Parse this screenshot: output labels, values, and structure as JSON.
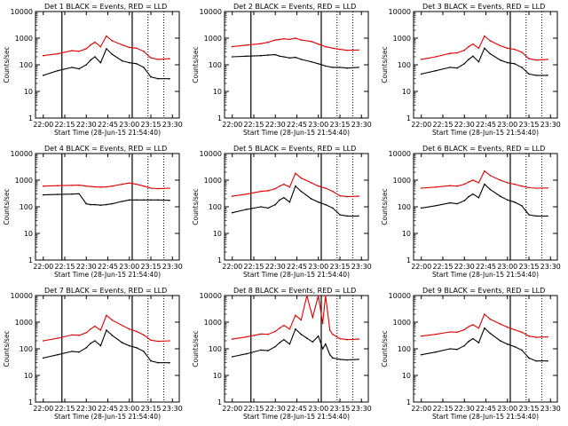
{
  "figure": {
    "shared_x_tick_labels": [
      "22:00",
      "22:15",
      "22:30",
      "22:45",
      "23:00",
      "23:15",
      "23:30"
    ],
    "shared_y_tick_labels": [
      "1",
      "10",
      "100",
      "1000",
      "10000"
    ],
    "ylabel": "Counts/sec",
    "xlabel": "Start Time (28-Jun-15 21:54:40)",
    "colors": {
      "events": "#000000",
      "lld": "#e00000",
      "background": "#ffffff",
      "axes": "#000000"
    }
  },
  "chart_data": [
    {
      "type": "line",
      "title": "Det  1",
      "legend_text": {
        "prefix": "BLACK = Events, RED",
        "suffix": "LLD",
        "equals": "="
      },
      "xlabel": "Start Time (28-Jun-15 21:54:40)",
      "ylabel": "Counts/sec",
      "x_unit": "minutes",
      "xlim": [
        21.91,
        23.58
      ],
      "ylim": [
        1,
        10000
      ],
      "yscale": "log",
      "x": [
        "22:00",
        "22:10",
        "22:20",
        "22:25",
        "22:30",
        "22:33",
        "22:36",
        "22:40",
        "22:44",
        "22:48",
        "22:55",
        "23:00",
        "23:05",
        "23:10",
        "23:15",
        "23:20",
        "23:28"
      ],
      "series": [
        {
          "name": "LLD",
          "color": "#e00000",
          "values": [
            220,
            260,
            340,
            320,
            400,
            560,
            700,
            480,
            1200,
            800,
            560,
            450,
            420,
            320,
            180,
            160,
            170
          ]
        },
        {
          "name": "Events",
          "color": "#000000",
          "values": [
            40,
            60,
            80,
            70,
            100,
            150,
            200,
            120,
            400,
            250,
            140,
            120,
            110,
            80,
            35,
            30,
            30
          ]
        }
      ],
      "vertical_lines": {
        "solid": [
          "22:13",
          "23:02"
        ],
        "dotted": [
          "23:13",
          "23:24"
        ]
      }
    },
    {
      "type": "line",
      "title": "Det  2",
      "legend_text": {
        "prefix": "BLACK = Events, RED",
        "suffix": "LLD",
        "equals": "="
      },
      "xlabel": "Start Time (28-Jun-15 21:54:40)",
      "ylabel": "Counts/sec",
      "x_unit": "minutes",
      "xlim": [
        21.91,
        23.58
      ],
      "ylim": [
        1,
        10000
      ],
      "yscale": "log",
      "x": [
        "22:00",
        "22:10",
        "22:20",
        "22:25",
        "22:30",
        "22:33",
        "22:36",
        "22:40",
        "22:44",
        "22:48",
        "22:55",
        "23:00",
        "23:05",
        "23:10",
        "23:15",
        "23:20",
        "23:28"
      ],
      "series": [
        {
          "name": "LLD",
          "color": "#e00000",
          "values": [
            480,
            550,
            620,
            700,
            850,
            900,
            950,
            900,
            1000,
            850,
            750,
            600,
            480,
            420,
            380,
            350,
            360
          ]
        },
        {
          "name": "Events",
          "color": "#000000",
          "values": [
            200,
            210,
            220,
            230,
            240,
            210,
            200,
            180,
            190,
            160,
            130,
            110,
            90,
            80,
            80,
            75,
            80
          ]
        }
      ],
      "vertical_lines": {
        "solid": [
          "22:13",
          "23:02"
        ],
        "dotted": [
          "23:13",
          "23:24"
        ]
      }
    },
    {
      "type": "line",
      "title": "Det  3",
      "legend_text": {
        "prefix": "BLACK = Events, RED",
        "suffix": "LLD",
        "equals": "="
      },
      "xlabel": "Start Time (28-Jun-15 21:54:40)",
      "ylabel": "Counts/sec",
      "x_unit": "minutes",
      "xlim": [
        21.91,
        23.58
      ],
      "ylim": [
        1,
        10000
      ],
      "yscale": "log",
      "x": [
        "22:00",
        "22:10",
        "22:20",
        "22:25",
        "22:30",
        "22:33",
        "22:36",
        "22:40",
        "22:44",
        "22:48",
        "22:55",
        "23:00",
        "23:05",
        "23:10",
        "23:15",
        "23:20",
        "23:28"
      ],
      "series": [
        {
          "name": "LLD",
          "color": "#e00000",
          "values": [
            160,
            200,
            270,
            280,
            350,
            480,
            600,
            420,
            1200,
            800,
            520,
            420,
            380,
            300,
            170,
            150,
            160
          ]
        },
        {
          "name": "Events",
          "color": "#000000",
          "values": [
            45,
            60,
            80,
            75,
            110,
            160,
            210,
            130,
            420,
            260,
            150,
            120,
            110,
            80,
            45,
            40,
            40
          ]
        }
      ],
      "vertical_lines": {
        "solid": [
          "23:02"
        ],
        "dotted": [
          "23:13",
          "23:24"
        ]
      }
    },
    {
      "type": "line",
      "title": "Det  4",
      "legend_text": {
        "prefix": "BLACK = Events, RED",
        "suffix": "LLD",
        "equals": "="
      },
      "xlabel": "Start Time (28-Jun-15 21:54:40)",
      "ylabel": "Counts/sec",
      "x_unit": "minutes",
      "xlim": [
        21.91,
        23.58
      ],
      "ylim": [
        1,
        10000
      ],
      "yscale": "log",
      "x": [
        "22:00",
        "22:10",
        "22:20",
        "22:25",
        "22:30",
        "22:33",
        "22:36",
        "22:40",
        "22:44",
        "22:48",
        "22:55",
        "23:00",
        "23:05",
        "23:10",
        "23:15",
        "23:20",
        "23:28"
      ],
      "series": [
        {
          "name": "LLD",
          "color": "#e00000",
          "values": [
            600,
            620,
            640,
            650,
            600,
            580,
            560,
            550,
            560,
            600,
            700,
            780,
            700,
            600,
            500,
            480,
            500
          ]
        },
        {
          "name": "Events",
          "color": "#000000",
          "values": [
            280,
            290,
            300,
            310,
            130,
            120,
            120,
            115,
            120,
            130,
            160,
            180,
            180,
            180,
            180,
            180,
            175
          ]
        }
      ],
      "vertical_lines": {
        "solid": [
          "22:13",
          "23:02"
        ],
        "dotted": [
          "23:13",
          "23:24"
        ]
      }
    },
    {
      "type": "line",
      "title": "Det  5",
      "legend_text": {
        "prefix": "BLACK = Events, RED",
        "suffix": "LLD",
        "equals": "="
      },
      "xlabel": "Start Time (28-Jun-15 21:54:40)",
      "ylabel": "Counts/sec",
      "x_unit": "minutes",
      "xlim": [
        21.91,
        23.58
      ],
      "ylim": [
        1,
        10000
      ],
      "yscale": "log",
      "x": [
        "22:00",
        "22:10",
        "22:20",
        "22:25",
        "22:30",
        "22:33",
        "22:36",
        "22:40",
        "22:44",
        "22:48",
        "22:55",
        "23:00",
        "23:05",
        "23:10",
        "23:15",
        "23:20",
        "23:28"
      ],
      "series": [
        {
          "name": "LLD",
          "color": "#e00000",
          "values": [
            250,
            300,
            380,
            400,
            480,
            600,
            700,
            550,
            1800,
            1200,
            800,
            600,
            500,
            380,
            260,
            240,
            250
          ]
        },
        {
          "name": "Events",
          "color": "#000000",
          "values": [
            60,
            80,
            100,
            90,
            120,
            180,
            220,
            150,
            600,
            380,
            200,
            150,
            120,
            90,
            50,
            45,
            45
          ]
        }
      ],
      "vertical_lines": {
        "solid": [
          "22:13",
          "23:02"
        ],
        "dotted": [
          "23:13",
          "23:24"
        ]
      }
    },
    {
      "type": "line",
      "title": "Det  6",
      "legend_text": {
        "prefix": "BLACK = Events, RED",
        "suffix": "LLD",
        "equals": "="
      },
      "xlabel": "Start Time (28-Jun-15 21:54:40)",
      "ylabel": "Counts/sec",
      "x_unit": "minutes",
      "xlim": [
        21.91,
        23.58
      ],
      "ylim": [
        1,
        10000
      ],
      "yscale": "log",
      "x": [
        "22:00",
        "22:10",
        "22:20",
        "22:25",
        "22:30",
        "22:33",
        "22:36",
        "22:40",
        "22:44",
        "22:48",
        "22:55",
        "23:00",
        "23:05",
        "23:10",
        "23:15",
        "23:20",
        "23:28"
      ],
      "series": [
        {
          "name": "LLD",
          "color": "#e00000",
          "values": [
            500,
            550,
            620,
            600,
            700,
            850,
            1000,
            800,
            2200,
            1500,
            1000,
            800,
            700,
            600,
            520,
            500,
            510
          ]
        },
        {
          "name": "Events",
          "color": "#000000",
          "values": [
            90,
            110,
            140,
            130,
            170,
            240,
            300,
            220,
            700,
            450,
            250,
            180,
            150,
            110,
            50,
            45,
            45
          ]
        }
      ],
      "vertical_lines": {
        "solid": [
          "23:02"
        ],
        "dotted": [
          "23:13",
          "23:24"
        ]
      }
    },
    {
      "type": "line",
      "title": "Det  7",
      "legend_text": {
        "prefix": "BLACK = Events, RED",
        "suffix": "LLD",
        "equals": "="
      },
      "xlabel": "Start Time (28-Jun-15 21:54:40)",
      "ylabel": "Counts/sec",
      "x_unit": "minutes",
      "xlim": [
        21.91,
        23.58
      ],
      "ylim": [
        1,
        10000
      ],
      "yscale": "log",
      "x": [
        "22:00",
        "22:10",
        "22:20",
        "22:25",
        "22:30",
        "22:33",
        "22:36",
        "22:40",
        "22:44",
        "22:48",
        "22:55",
        "23:00",
        "23:05",
        "23:10",
        "23:15",
        "23:20",
        "23:28"
      ],
      "series": [
        {
          "name": "LLD",
          "color": "#e00000",
          "values": [
            200,
            250,
            330,
            320,
            400,
            550,
            700,
            500,
            1800,
            1200,
            750,
            550,
            450,
            330,
            210,
            190,
            200
          ]
        },
        {
          "name": "Events",
          "color": "#000000",
          "values": [
            45,
            60,
            80,
            75,
            110,
            160,
            200,
            130,
            500,
            320,
            170,
            130,
            110,
            80,
            35,
            30,
            30
          ]
        }
      ],
      "vertical_lines": {
        "solid": [
          "22:13",
          "23:02"
        ],
        "dotted": [
          "23:13",
          "23:24"
        ]
      }
    },
    {
      "type": "line",
      "title": "Det  8",
      "legend_text": {
        "prefix": "BLACK = Events, RED",
        "suffix": "LLD",
        "equals": "="
      },
      "xlabel": "Start Time (28-Jun-15 21:54:40)",
      "ylabel": "Counts/sec",
      "x_unit": "minutes",
      "xlim": [
        21.91,
        23.58
      ],
      "ylim": [
        1,
        10000
      ],
      "yscale": "log",
      "x": [
        "22:00",
        "22:10",
        "22:20",
        "22:25",
        "22:30",
        "22:33",
        "22:36",
        "22:40",
        "22:44",
        "22:48",
        "22:52",
        "22:56",
        "23:00",
        "23:03",
        "23:05",
        "23:08",
        "23:10",
        "23:15",
        "23:20",
        "23:28"
      ],
      "series": [
        {
          "name": "LLD",
          "color": "#e00000",
          "values": [
            230,
            280,
            360,
            350,
            450,
            600,
            750,
            550,
            1800,
            1200,
            10000,
            1500,
            10000,
            900,
            10000,
            500,
            350,
            240,
            220,
            230
          ]
        },
        {
          "name": "Events",
          "color": "#000000",
          "values": [
            50,
            65,
            90,
            85,
            120,
            170,
            220,
            150,
            550,
            350,
            250,
            180,
            300,
            100,
            150,
            60,
            45,
            40,
            38,
            40
          ]
        }
      ],
      "vertical_lines": {
        "solid": [
          "22:13",
          "23:02"
        ],
        "dotted": [
          "23:13",
          "23:24"
        ]
      }
    },
    {
      "type": "line",
      "title": "Det  9",
      "legend_text": {
        "prefix": "BLACK = Events, RED",
        "suffix": "LLD",
        "equals": "="
      },
      "xlabel": "Start Time (28-Jun-15 21:54:40)",
      "ylabel": "Counts/sec",
      "x_unit": "minutes",
      "xlim": [
        21.91,
        23.58
      ],
      "ylim": [
        1,
        10000
      ],
      "yscale": "log",
      "x": [
        "22:00",
        "22:10",
        "22:20",
        "22:25",
        "22:30",
        "22:33",
        "22:36",
        "22:40",
        "22:44",
        "22:48",
        "22:55",
        "23:00",
        "23:05",
        "23:10",
        "23:15",
        "23:20",
        "23:28"
      ],
      "series": [
        {
          "name": "LLD",
          "color": "#e00000",
          "values": [
            300,
            350,
            430,
            420,
            520,
            680,
            800,
            600,
            2000,
            1300,
            850,
            650,
            520,
            420,
            300,
            270,
            280
          ]
        },
        {
          "name": "Events",
          "color": "#000000",
          "values": [
            60,
            75,
            100,
            95,
            130,
            190,
            240,
            170,
            600,
            380,
            200,
            150,
            120,
            90,
            45,
            35,
            35
          ]
        }
      ],
      "vertical_lines": {
        "solid": [
          "23:02"
        ],
        "dotted": [
          "23:13",
          "23:24"
        ]
      }
    }
  ]
}
